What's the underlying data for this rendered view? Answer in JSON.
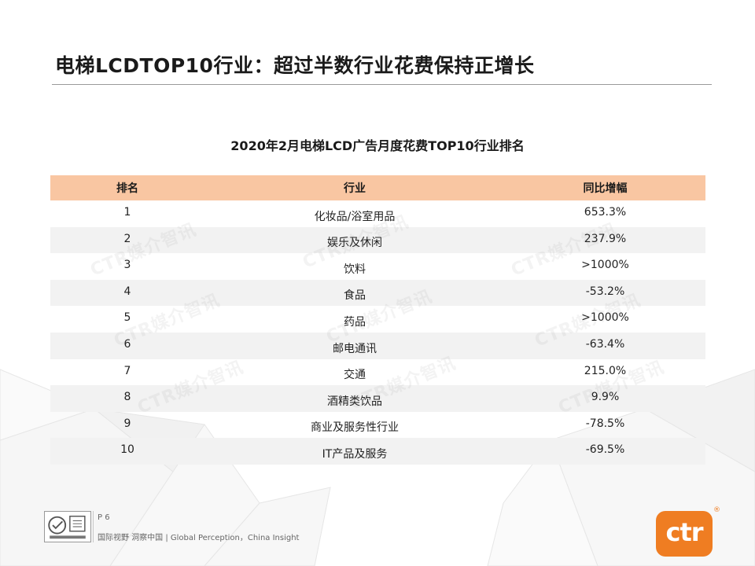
{
  "slide": {
    "title": "电梯LCDTOP10行业：超过半数行业花费保持正增长",
    "table_caption": "2020年2月电梯LCD广告月度花费TOP10行业排名"
  },
  "table": {
    "headers": {
      "rank": "排名",
      "industry": "行业",
      "yoy": "同比增幅"
    },
    "rows": [
      {
        "rank": "1",
        "industry": "化妆品/浴室用品",
        "yoy": "653.3%"
      },
      {
        "rank": "2",
        "industry": "娱乐及休闲",
        "yoy": "237.9%"
      },
      {
        "rank": "3",
        "industry": "饮料",
        "yoy": ">1000%"
      },
      {
        "rank": "4",
        "industry": "食品",
        "yoy": "-53.2%"
      },
      {
        "rank": "5",
        "industry": "药品",
        "yoy": ">1000%"
      },
      {
        "rank": "6",
        "industry": "邮电通讯",
        "yoy": "-63.4%"
      },
      {
        "rank": "7",
        "industry": "交通",
        "yoy": "215.0%"
      },
      {
        "rank": "8",
        "industry": "酒精类饮品",
        "yoy": "9.9%"
      },
      {
        "rank": "9",
        "industry": "商业及服务性行业",
        "yoy": "-78.5%"
      },
      {
        "rank": "10",
        "industry": "IT产品及服务",
        "yoy": "-69.5%"
      }
    ]
  },
  "watermark": {
    "text": "CTR媒介智讯"
  },
  "footer": {
    "page": "P 6",
    "tagline": "国际视野 洞察中国 | Global Perception，China Insight",
    "logo_text": "ctr",
    "reg_mark": "®"
  },
  "colors": {
    "header_bg": "#f9c6a2",
    "stripe_bg": "#f2f2f2",
    "brand_orange": "#ef7d22"
  }
}
